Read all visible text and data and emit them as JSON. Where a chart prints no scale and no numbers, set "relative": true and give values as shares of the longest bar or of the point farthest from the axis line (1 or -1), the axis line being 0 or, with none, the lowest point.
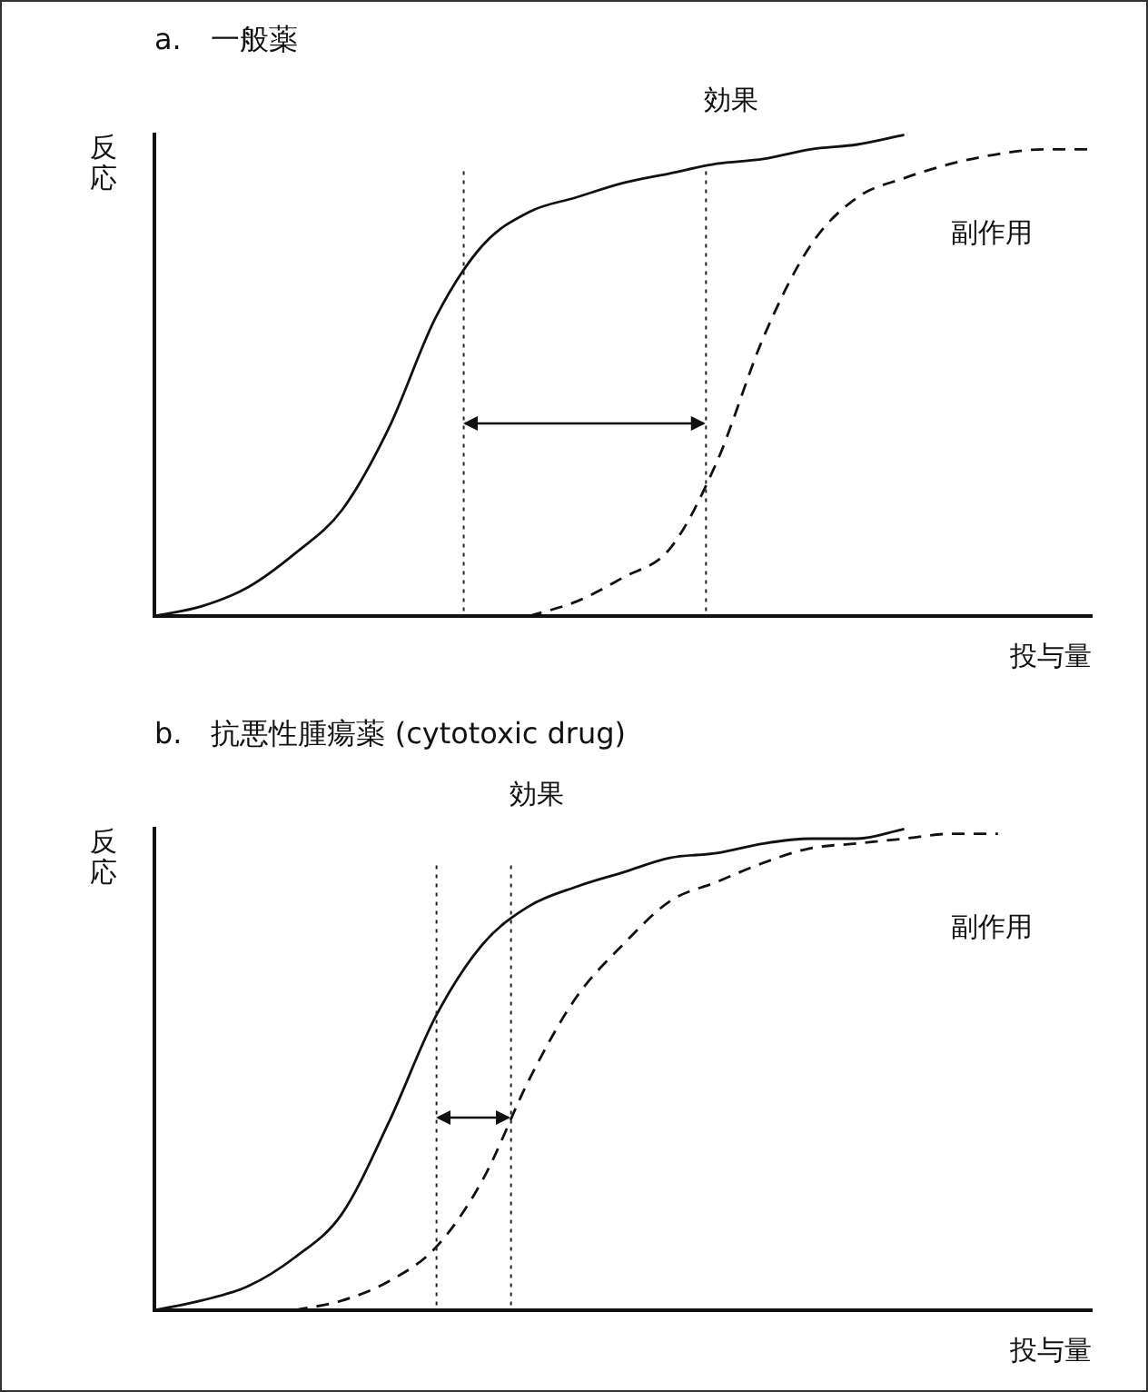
{
  "chart_data": [
    {
      "type": "line",
      "title": "a.　一般薬",
      "xlabel": "投与量",
      "ylabel": "反応",
      "relative": true,
      "grid": false,
      "legend": false,
      "tick_labels": false,
      "marker": "none",
      "categories": [
        null,
        null,
        null,
        null,
        null,
        null,
        null,
        null,
        null,
        null,
        null,
        null,
        null,
        null,
        null,
        null,
        null,
        null,
        null,
        null,
        null
      ],
      "series": [
        {
          "name": "効果",
          "color": "#111111",
          "line_style": "solid",
          "values": [
            0,
            0.02,
            0.06,
            0.13,
            0.22,
            0.39,
            0.62,
            0.77,
            0.84,
            0.87,
            0.9,
            0.92,
            0.94,
            0.95,
            0.97,
            0.98,
            1,
            null,
            null,
            null,
            null
          ]
        },
        {
          "name": "副作用",
          "color": "#111111",
          "line_style": "dashed",
          "values": [
            null,
            null,
            null,
            null,
            null,
            null,
            null,
            null,
            0,
            0.03,
            0.08,
            0.14,
            0.32,
            0.58,
            0.77,
            0.87,
            0.91,
            0.94,
            0.96,
            0.97,
            0.97
          ]
        }
      ]
    },
    {
      "type": "line",
      "title": "b.　抗悪性腫瘍薬 (cytotoxic drug)",
      "xlabel": "投与量",
      "ylabel": "反応",
      "relative": true,
      "grid": false,
      "legend": false,
      "tick_labels": false,
      "marker": "none",
      "categories": [
        null,
        null,
        null,
        null,
        null,
        null,
        null,
        null,
        null,
        null,
        null,
        null,
        null,
        null,
        null,
        null,
        null,
        null,
        null,
        null,
        null
      ],
      "series": [
        {
          "name": "効果",
          "color": "#111111",
          "line_style": "solid",
          "values": [
            0,
            0.02,
            0.05,
            0.11,
            0.2,
            0.39,
            0.61,
            0.76,
            0.84,
            0.88,
            0.91,
            0.94,
            0.95,
            0.97,
            0.98,
            0.98,
            1,
            null,
            null,
            null,
            null
          ]
        },
        {
          "name": "副作用",
          "color": "#111111",
          "line_style": "dashed",
          "values": [
            null,
            null,
            null,
            0,
            0.02,
            0.06,
            0.13,
            0.27,
            0.48,
            0.65,
            0.76,
            0.85,
            0.89,
            0.93,
            0.96,
            0.97,
            0.98,
            0.99,
            0.99,
            null,
            null
          ]
        }
      ]
    }
  ]
}
